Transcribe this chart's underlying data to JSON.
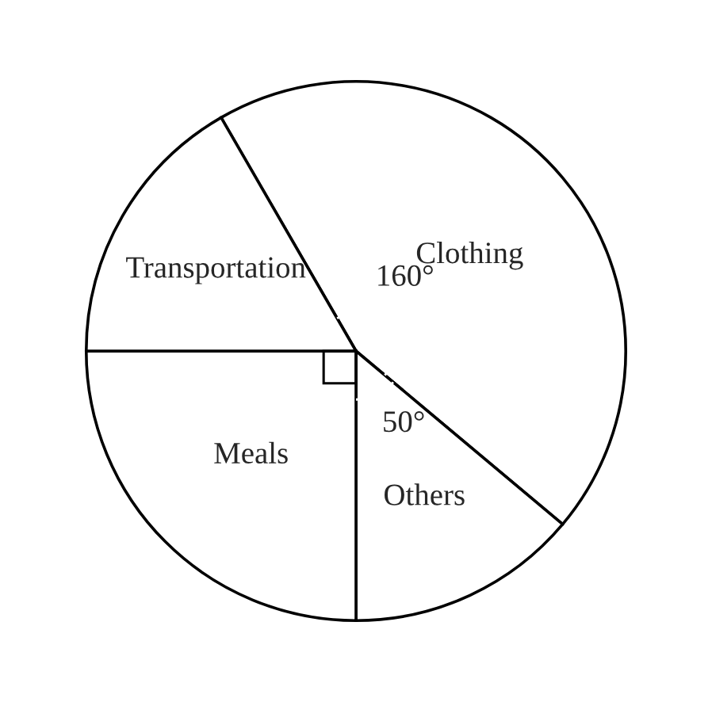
{
  "chart_data": {
    "type": "pie",
    "categories": [
      "Clothing",
      "Others",
      "Meals",
      "Transportation"
    ],
    "values": [
      160,
      50,
      90,
      60
    ],
    "colors": [
      "#ffffff",
      "#ffffff",
      "#ffffff",
      "#ffffff"
    ],
    "value_labels": [
      "160°",
      "50°",
      null,
      null
    ],
    "legend": false
  }
}
